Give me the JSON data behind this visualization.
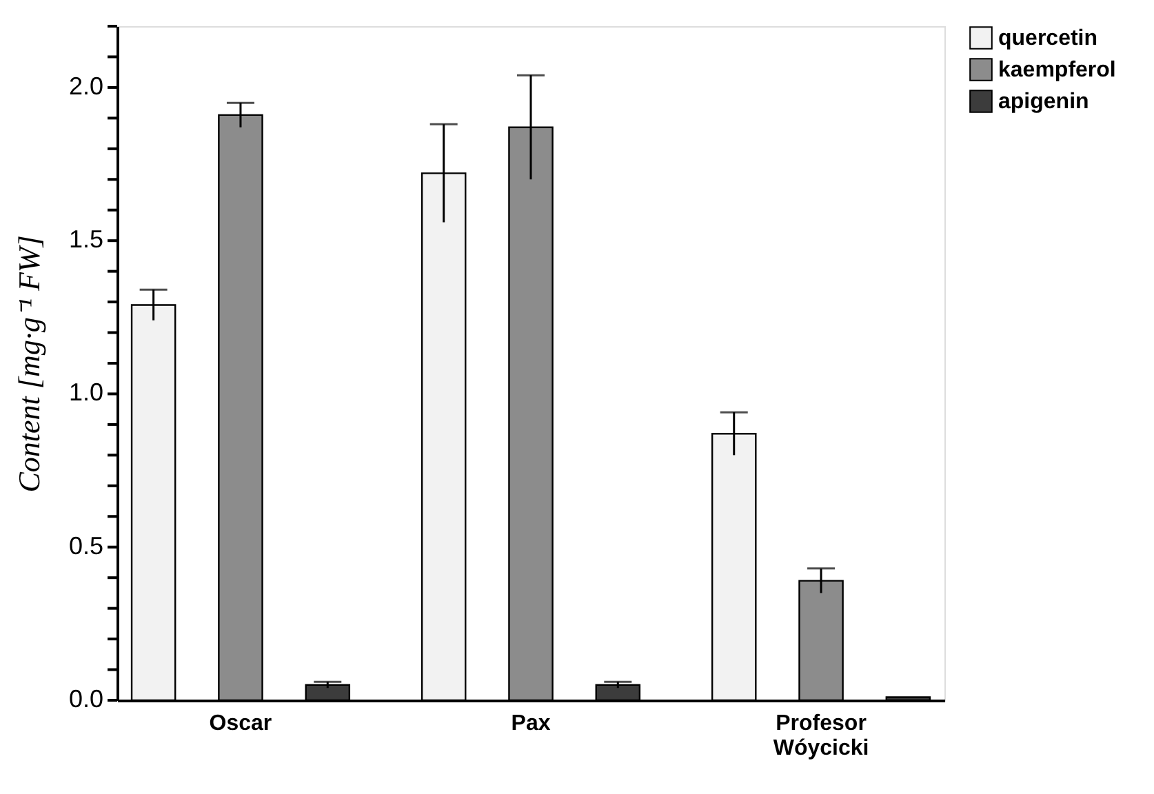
{
  "chart_data": {
    "type": "bar",
    "ylabel": "Content [mg·g⁻¹ FW]",
    "categories": [
      "Oscar",
      "Pax",
      "Profesor Wóycicki"
    ],
    "series": [
      {
        "name": "quercetin",
        "color": "#f2f2f2",
        "values": [
          1.29,
          1.72,
          0.87
        ],
        "errors": [
          0.05,
          0.16,
          0.07
        ]
      },
      {
        "name": "kaempferol",
        "color": "#8c8c8c",
        "values": [
          1.91,
          1.87,
          0.39
        ],
        "errors": [
          0.04,
          0.17,
          0.04
        ]
      },
      {
        "name": "apigenin",
        "color": "#3c3c3c",
        "values": [
          0.05,
          0.05,
          0.01
        ],
        "errors": [
          0.01,
          0.01,
          null
        ]
      }
    ],
    "ylim": [
      0,
      2.2
    ],
    "yticks": [
      {
        "value": 0,
        "label": "0.0"
      },
      {
        "value": 0.1,
        "label": null
      },
      {
        "value": 0.2,
        "label": null
      },
      {
        "value": 0.3,
        "label": null
      },
      {
        "value": 0.4,
        "label": null
      },
      {
        "value": 0.5,
        "label": "0.5"
      },
      {
        "value": 0.6,
        "label": null
      },
      {
        "value": 0.7,
        "label": null
      },
      {
        "value": 0.8,
        "label": null
      },
      {
        "value": 0.9,
        "label": null
      },
      {
        "value": 1.0,
        "label": "1.0"
      },
      {
        "value": 1.1,
        "label": null
      },
      {
        "value": 1.2,
        "label": null
      },
      {
        "value": 1.3,
        "label": null
      },
      {
        "value": 1.4,
        "label": null
      },
      {
        "value": 1.5,
        "label": "1.5"
      },
      {
        "value": 1.6,
        "label": null
      },
      {
        "value": 1.7,
        "label": null
      },
      {
        "value": 1.8,
        "label": null
      },
      {
        "value": 1.9,
        "label": null
      },
      {
        "value": 2.0,
        "label": "2.0"
      },
      {
        "value": 2.1,
        "label": null
      },
      {
        "value": 2.2,
        "label": null
      }
    ],
    "grid": false,
    "legend": "right"
  }
}
